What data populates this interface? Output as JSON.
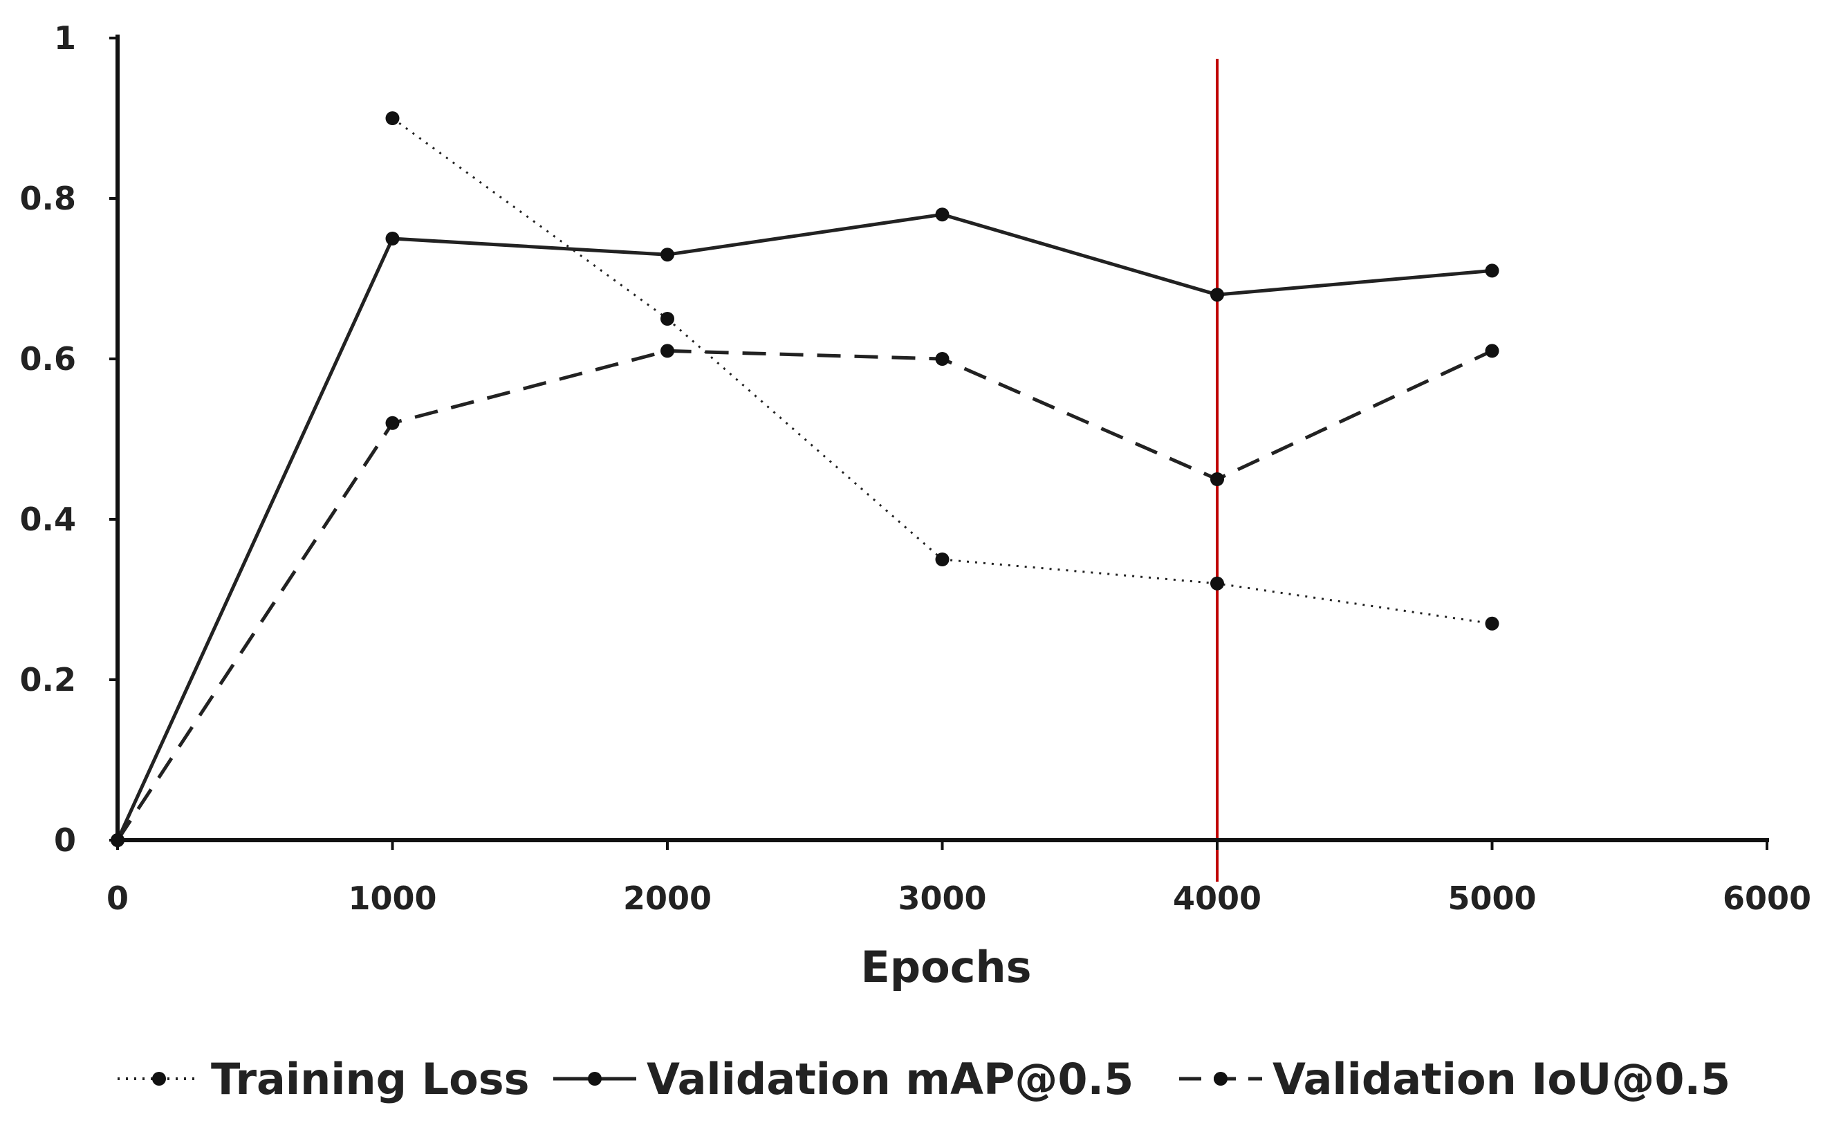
{
  "chart_data": {
    "type": "line",
    "title": "",
    "xlabel": "Epochs",
    "ylabel": "",
    "xlim": [
      0,
      6000
    ],
    "ylim": [
      0,
      1
    ],
    "x_ticks": [
      0,
      1000,
      2000,
      3000,
      4000,
      5000,
      6000
    ],
    "x_tick_labels": [
      "0",
      "1000",
      "2000",
      "3000",
      "4000",
      "5000",
      "6000"
    ],
    "y_ticks": [
      0,
      0.2,
      0.4,
      0.6,
      0.8,
      1
    ],
    "y_tick_labels": [
      "0",
      "0.2",
      "0.4",
      "0.6",
      "0.8",
      "1"
    ],
    "grid": false,
    "legend_position": "bottom",
    "reference_line": {
      "orientation": "vertical",
      "x": 4000,
      "color": "#c00000"
    },
    "series": [
      {
        "name": "Training Loss",
        "style": "dotted",
        "color": "#222222",
        "x": [
          1000,
          2000,
          3000,
          4000,
          5000
        ],
        "y": [
          0.9,
          0.65,
          0.35,
          0.32,
          0.27
        ]
      },
      {
        "name": "Validation mAP@0.5",
        "style": "solid",
        "color": "#222222",
        "x": [
          0,
          1000,
          2000,
          3000,
          4000,
          5000
        ],
        "y": [
          0,
          0.75,
          0.73,
          0.78,
          0.68,
          0.71
        ]
      },
      {
        "name": "Validation IoU@0.5",
        "style": "dashed",
        "color": "#222222",
        "x": [
          0,
          1000,
          2000,
          3000,
          4000,
          5000
        ],
        "y": [
          0,
          0.52,
          0.61,
          0.6,
          0.45,
          0.61
        ]
      }
    ]
  }
}
